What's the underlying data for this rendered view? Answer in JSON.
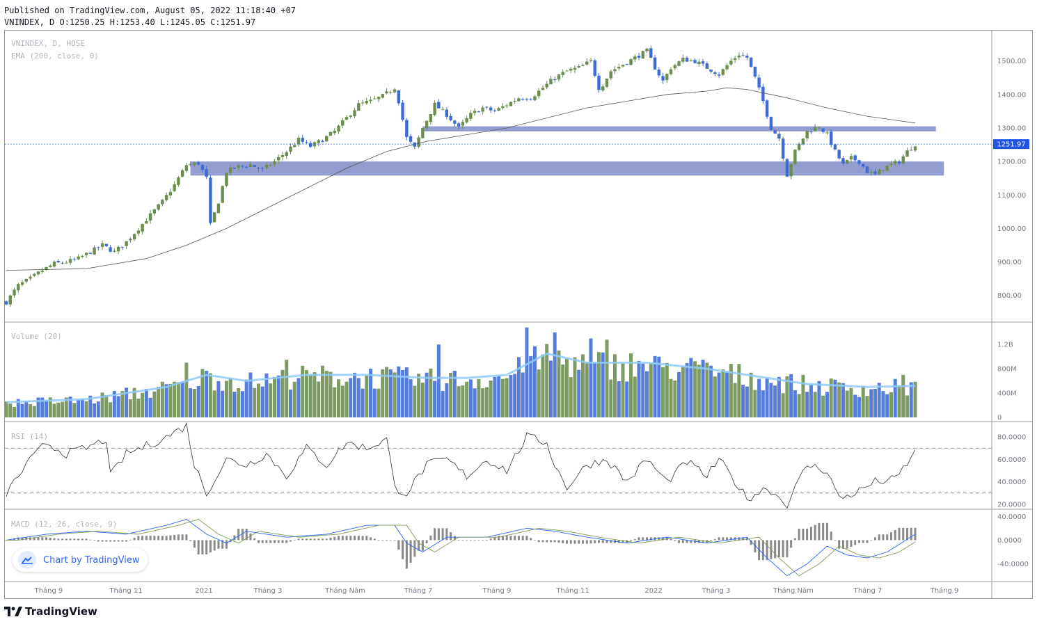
{
  "header": {
    "published": "Published on TradingView.com, August 05, 2022 11:18:40 +07",
    "ohlc": "VNINDEX, D O:1250.25 H:1253.40 L:1245.05 C:1251.97"
  },
  "panes": {
    "main_label_1": "VNINDEX, D, HOSE",
    "main_label_2": "EMA (200, close, 0)",
    "volume_label": "Volume (20)",
    "rsi_label": "RSI (14)",
    "macd_label": "MACD (12, 26, close, 9)"
  },
  "last_price_label": "1251.97",
  "badge": {
    "label": "Chart by TradingView"
  },
  "footer": {
    "brand": "TradingView"
  },
  "colors": {
    "up": "#6b8e4e",
    "down": "#3d6bd4",
    "zone": "#8e98cc",
    "ema": "#555555",
    "vol_ma": "#90caf9",
    "macd": "#2962ff",
    "signal": "#7a9a52",
    "price_tag": "#1e53e5"
  },
  "chart_data": [
    {
      "type": "line",
      "subtype": "candlestick",
      "name": "VNINDEX",
      "x_ticks": [
        "Tháng 9",
        "Tháng 11",
        "2021",
        "Tháng 3",
        "Tháng Năm",
        "Tháng 7",
        "Tháng 9",
        "Tháng 11",
        "2022",
        "Tháng 3",
        "Tháng Năm",
        "Tháng 7",
        "Tháng 9"
      ],
      "y_ticks": [
        "1500.00",
        "1400.00",
        "1300.00",
        "1200.00",
        "1100.00",
        "1000.00",
        "900.00",
        "800.00"
      ],
      "ylim": [
        735,
        1570
      ],
      "last_close": 1251.97,
      "close_path": [
        [
          0,
          780
        ],
        [
          3,
          830
        ],
        [
          6,
          850
        ],
        [
          9,
          875
        ],
        [
          12,
          895
        ],
        [
          15,
          900
        ],
        [
          18,
          910
        ],
        [
          21,
          930
        ],
        [
          24,
          950
        ],
        [
          27,
          930
        ],
        [
          30,
          960
        ],
        [
          33,
          1000
        ],
        [
          36,
          1040
        ],
        [
          39,
          1080
        ],
        [
          42,
          1130
        ],
        [
          45,
          1190
        ],
        [
          48,
          1195
        ],
        [
          50,
          1150
        ],
        [
          51,
          1010
        ],
        [
          53,
          1080
        ],
        [
          55,
          1170
        ],
        [
          58,
          1185
        ],
        [
          61,
          1190
        ],
        [
          64,
          1175
        ],
        [
          67,
          1200
        ],
        [
          70,
          1230
        ],
        [
          73,
          1265
        ],
        [
          76,
          1245
        ],
        [
          79,
          1265
        ],
        [
          82,
          1290
        ],
        [
          85,
          1330
        ],
        [
          88,
          1370
        ],
        [
          91,
          1380
        ],
        [
          94,
          1395
        ],
        [
          97,
          1420
        ],
        [
          98,
          1380
        ],
        [
          100,
          1270
        ],
        [
          102,
          1240
        ],
        [
          104,
          1300
        ],
        [
          107,
          1370
        ],
        [
          110,
          1340
        ],
        [
          113,
          1300
        ],
        [
          116,
          1340
        ],
        [
          119,
          1360
        ],
        [
          122,
          1350
        ],
        [
          125,
          1370
        ],
        [
          128,
          1390
        ],
        [
          131,
          1390
        ],
        [
          134,
          1420
        ],
        [
          137,
          1450
        ],
        [
          140,
          1470
        ],
        [
          143,
          1480
        ],
        [
          146,
          1500
        ],
        [
          148,
          1420
        ],
        [
          149,
          1430
        ],
        [
          151,
          1470
        ],
        [
          154,
          1490
        ],
        [
          157,
          1510
        ],
        [
          160,
          1530
        ],
        [
          162,
          1480
        ],
        [
          164,
          1440
        ],
        [
          166,
          1480
        ],
        [
          169,
          1505
        ],
        [
          172,
          1500
        ],
        [
          175,
          1480
        ],
        [
          178,
          1460
        ],
        [
          181,
          1500
        ],
        [
          183,
          1520
        ],
        [
          185,
          1510
        ],
        [
          187,
          1450
        ],
        [
          189,
          1380
        ],
        [
          191,
          1300
        ],
        [
          193,
          1270
        ],
        [
          195,
          1160
        ],
        [
          197,
          1230
        ],
        [
          200,
          1290
        ],
        [
          203,
          1305
        ],
        [
          205,
          1280
        ],
        [
          207,
          1230
        ],
        [
          209,
          1190
        ],
        [
          211,
          1210
        ],
        [
          213,
          1200
        ],
        [
          215,
          1170
        ],
        [
          217,
          1160
        ],
        [
          219,
          1180
        ],
        [
          221,
          1190
        ],
        [
          223,
          1200
        ],
        [
          225,
          1230
        ],
        [
          227,
          1252
        ]
      ],
      "ema200_path": [
        [
          0,
          875
        ],
        [
          20,
          880
        ],
        [
          35,
          910
        ],
        [
          45,
          950
        ],
        [
          55,
          1000
        ],
        [
          65,
          1060
        ],
        [
          75,
          1120
        ],
        [
          85,
          1180
        ],
        [
          95,
          1230
        ],
        [
          105,
          1260
        ],
        [
          115,
          1280
        ],
        [
          125,
          1300
        ],
        [
          135,
          1330
        ],
        [
          145,
          1360
        ],
        [
          155,
          1380
        ],
        [
          165,
          1400
        ],
        [
          175,
          1410
        ],
        [
          180,
          1420
        ],
        [
          185,
          1415
        ],
        [
          195,
          1390
        ],
        [
          205,
          1360
        ],
        [
          215,
          1335
        ],
        [
          227,
          1315
        ]
      ],
      "zones": [
        {
          "from_x": 104,
          "to_x": 220,
          "low": 1290,
          "high": 1305
        },
        {
          "from_x": 46,
          "to_x": 222,
          "low": 1158,
          "high": 1200
        }
      ]
    },
    {
      "type": "bar",
      "name": "Volume",
      "y_ticks": [
        "1.2B",
        "800M",
        "400M",
        "0"
      ],
      "ylim": [
        0,
        1500
      ],
      "approx_avg_path": [
        [
          0,
          250
        ],
        [
          20,
          300
        ],
        [
          40,
          500
        ],
        [
          50,
          700
        ],
        [
          60,
          600
        ],
        [
          75,
          700
        ],
        [
          90,
          700
        ],
        [
          105,
          650
        ],
        [
          115,
          650
        ],
        [
          125,
          700
        ],
        [
          135,
          1050
        ],
        [
          145,
          900
        ],
        [
          160,
          900
        ],
        [
          175,
          800
        ],
        [
          185,
          700
        ],
        [
          200,
          550
        ],
        [
          215,
          500
        ],
        [
          227,
          520
        ]
      ],
      "peaks": [
        [
          45,
          900
        ],
        [
          70,
          950
        ],
        [
          108,
          1200
        ],
        [
          130,
          1480
        ],
        [
          137,
          1400
        ],
        [
          146,
          1300
        ],
        [
          150,
          1280
        ],
        [
          163,
          1000
        ],
        [
          175,
          900
        ],
        [
          224,
          700
        ]
      ]
    },
    {
      "type": "line",
      "name": "RSI (14)",
      "y_ticks": [
        "80.0000",
        "60.0000",
        "40.0000",
        "20.0000"
      ],
      "ylim": [
        18,
        90
      ],
      "bands": [
        70,
        30
      ],
      "values_path": [
        [
          0,
          30
        ],
        [
          5,
          55
        ],
        [
          10,
          75
        ],
        [
          15,
          65
        ],
        [
          20,
          70
        ],
        [
          25,
          78
        ],
        [
          26,
          45
        ],
        [
          30,
          65
        ],
        [
          35,
          72
        ],
        [
          40,
          80
        ],
        [
          45,
          90
        ],
        [
          47,
          55
        ],
        [
          50,
          30
        ],
        [
          55,
          60
        ],
        [
          60,
          55
        ],
        [
          65,
          65
        ],
        [
          70,
          45
        ],
        [
          75,
          70
        ],
        [
          80,
          55
        ],
        [
          85,
          75
        ],
        [
          90,
          70
        ],
        [
          95,
          78
        ],
        [
          97,
          35
        ],
        [
          100,
          30
        ],
        [
          105,
          55
        ],
        [
          110,
          60
        ],
        [
          115,
          45
        ],
        [
          120,
          60
        ],
        [
          125,
          50
        ],
        [
          130,
          80
        ],
        [
          135,
          75
        ],
        [
          137,
          55
        ],
        [
          140,
          35
        ],
        [
          145,
          55
        ],
        [
          150,
          60
        ],
        [
          155,
          40
        ],
        [
          160,
          60
        ],
        [
          165,
          40
        ],
        [
          170,
          58
        ],
        [
          175,
          45
        ],
        [
          178,
          60
        ],
        [
          182,
          40
        ],
        [
          185,
          25
        ],
        [
          190,
          35
        ],
        [
          195,
          20
        ],
        [
          200,
          55
        ],
        [
          205,
          50
        ],
        [
          208,
          25
        ],
        [
          212,
          30
        ],
        [
          217,
          40
        ],
        [
          222,
          42
        ],
        [
          227,
          66
        ]
      ]
    },
    {
      "type": "line",
      "name": "MACD",
      "y_ticks": [
        "40.0000",
        "0.0000",
        "-40.0000"
      ],
      "ylim": [
        -65,
        45
      ],
      "macd_path": [
        [
          0,
          0
        ],
        [
          10,
          10
        ],
        [
          20,
          15
        ],
        [
          30,
          10
        ],
        [
          40,
          25
        ],
        [
          45,
          35
        ],
        [
          50,
          10
        ],
        [
          55,
          -5
        ],
        [
          60,
          15
        ],
        [
          70,
          5
        ],
        [
          80,
          10
        ],
        [
          90,
          25
        ],
        [
          97,
          25
        ],
        [
          100,
          -5
        ],
        [
          104,
          -20
        ],
        [
          110,
          5
        ],
        [
          120,
          5
        ],
        [
          130,
          20
        ],
        [
          137,
          15
        ],
        [
          145,
          5
        ],
        [
          155,
          -5
        ],
        [
          165,
          5
        ],
        [
          175,
          -5
        ],
        [
          185,
          5
        ],
        [
          190,
          -30
        ],
        [
          195,
          -60
        ],
        [
          200,
          -40
        ],
        [
          205,
          -10
        ],
        [
          210,
          -25
        ],
        [
          215,
          -30
        ],
        [
          220,
          -20
        ],
        [
          227,
          10
        ]
      ]
    }
  ]
}
